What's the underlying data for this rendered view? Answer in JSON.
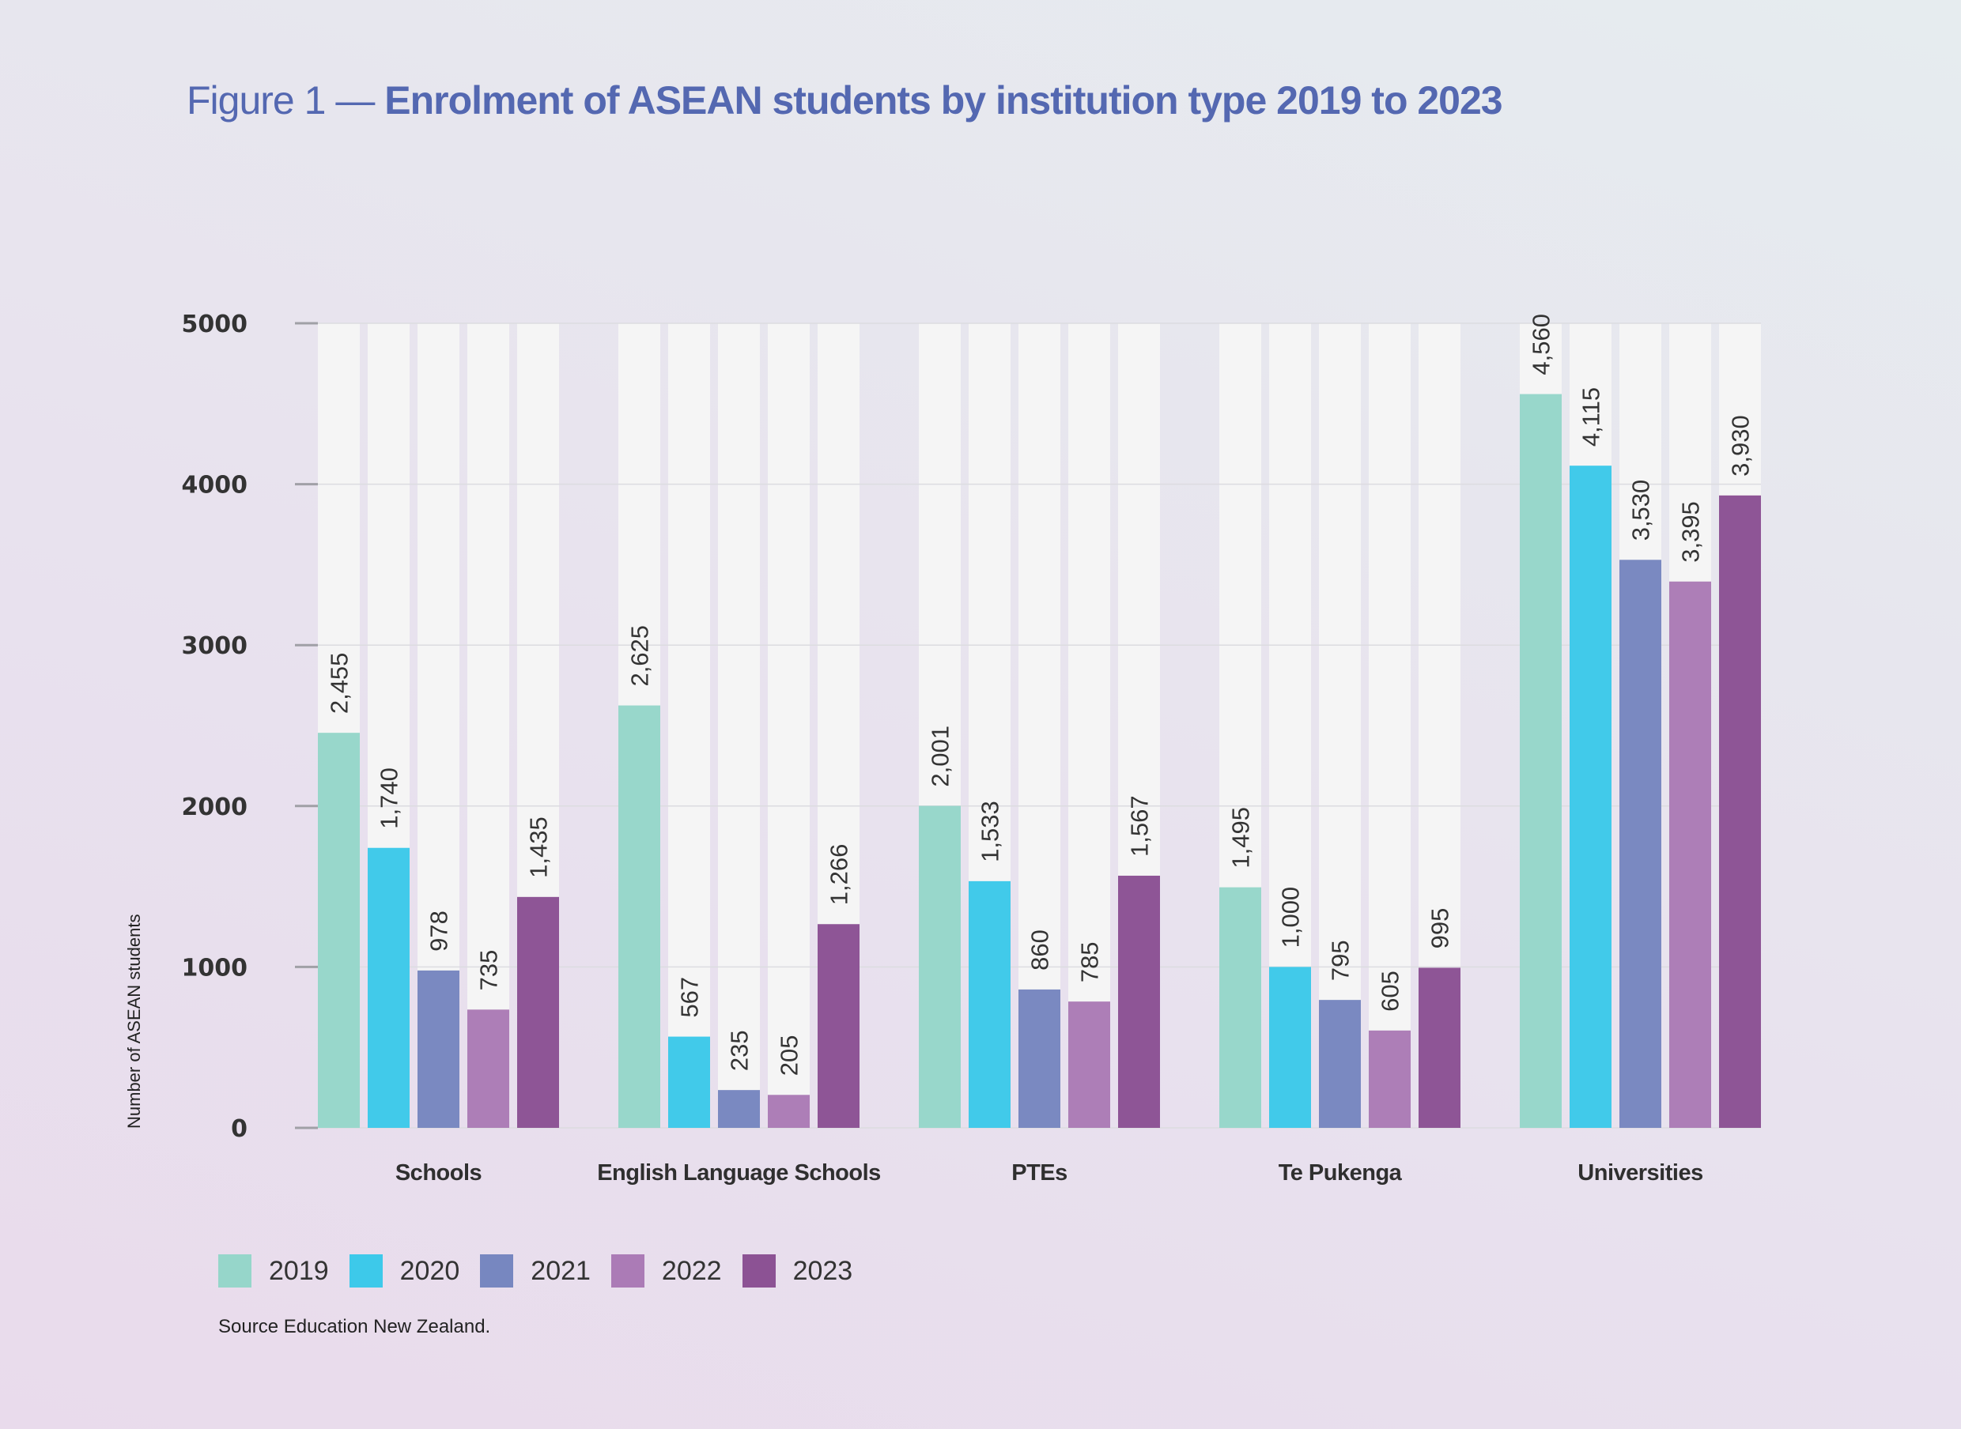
{
  "title": {
    "prefix": "Figure 1 — ",
    "main": "Enrolment of ASEAN students by institution type 2019 to 2023"
  },
  "source": "Source Education New Zealand.",
  "chart_data": {
    "type": "bar",
    "title": "Figure 1 — Enrolment of ASEAN students by institution type 2019 to 2023",
    "xlabel": "",
    "ylabel": "Number of ASEAN students",
    "ylim": [
      0,
      5000
    ],
    "yticks": [
      0,
      1000,
      2000,
      3000,
      4000,
      5000
    ],
    "grid": true,
    "legend_position": "bottom-left",
    "categories": [
      "Schools",
      "English Language Schools",
      "PTEs",
      "Te Pukenga",
      "Universities"
    ],
    "series": [
      {
        "name": "2019",
        "color": "#96d6ca",
        "values": [
          2455,
          2625,
          2001,
          1495,
          4560
        ],
        "labels": [
          "2,455",
          "2,625",
          "2,001",
          "1,495",
          "4,560"
        ]
      },
      {
        "name": "2020",
        "color": "#3dc9ea",
        "values": [
          1740,
          567,
          1533,
          1000,
          4115
        ],
        "labels": [
          "1,740",
          "567",
          "1,533",
          "1,000",
          "4,115"
        ]
      },
      {
        "name": "2021",
        "color": "#7787c0",
        "values": [
          978,
          235,
          860,
          795,
          3530
        ],
        "labels": [
          "978",
          "235",
          "860",
          "795",
          "3,530"
        ]
      },
      {
        "name": "2022",
        "color": "#ab7bb6",
        "values": [
          735,
          205,
          785,
          605,
          3395
        ],
        "labels": [
          "735",
          "205",
          "785",
          "605",
          "3,395"
        ]
      },
      {
        "name": "2023",
        "color": "#8c5294",
        "values": [
          1435,
          1266,
          1567,
          995,
          3930
        ],
        "labels": [
          "1,435",
          "1,266",
          "1,567",
          "995",
          "3,930"
        ]
      }
    ]
  }
}
